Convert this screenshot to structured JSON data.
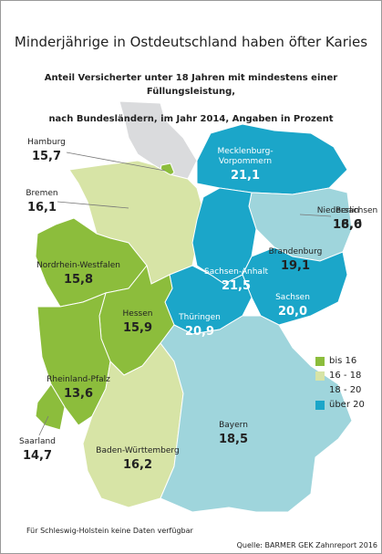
{
  "chart_data": {
    "type": "choropleth",
    "title": "Minderjährige in Ostdeutschland haben öfter Karies",
    "subtitle": [
      "Anteil Versicherter unter 18 Jahren mit mindestens einer Füllungsleistung,",
      "nach Bundesländern, im Jahr 2014, Angaben in Prozent"
    ],
    "categories": [
      "Hamburg",
      "Bremen",
      "Niedersachsen",
      "Mecklenburg-\nVorpommern",
      "Berlin",
      "Brandenburg",
      "Sachsen-Anhalt",
      "Sachsen",
      "Thüringen",
      "Nordrhein-Westfalen",
      "Hessen",
      "Rheinland-Pfalz",
      "Saarland",
      "Baden-Württemberg",
      "Bayern"
    ],
    "values": [
      15.7,
      16.1,
      16.6,
      21.1,
      18.0,
      19.1,
      21.5,
      20.0,
      20.9,
      15.8,
      15.9,
      13.6,
      14.7,
      16.2,
      18.5
    ],
    "value_labels": [
      "15,7",
      "16,1",
      "16,6",
      "21,1",
      "18,0",
      "19,1",
      "21,5",
      "20,0",
      "20,9",
      "15,8",
      "15,9",
      "13,6",
      "14,7",
      "16,2",
      "18,5"
    ],
    "colors": [
      "#8cbd3c",
      "#d7e4a6",
      "#d7e4a6",
      "#1ba6c9",
      "#9fd5dc",
      "#9fd5dc",
      "#1ba6c9",
      "#1ba6c9",
      "#1ba6c9",
      "#8cbd3c",
      "#8cbd3c",
      "#8cbd3c",
      "#8cbd3c",
      "#d7e4a6",
      "#9fd5dc"
    ],
    "legend": [
      {
        "label": "bis 16",
        "color": "#8cbd3c"
      },
      {
        "label": "16 - 18",
        "color": "#d7e4a6"
      },
      {
        "label": "18 - 20",
        "color": "#9fd5dc"
      },
      {
        "label": "über 20",
        "color": "#1ba6c9"
      }
    ],
    "note": "Für Schleswig-Holstein keine Daten verfügbar",
    "source": "Quelle: BARMER GEK Zahnreport 2016"
  }
}
